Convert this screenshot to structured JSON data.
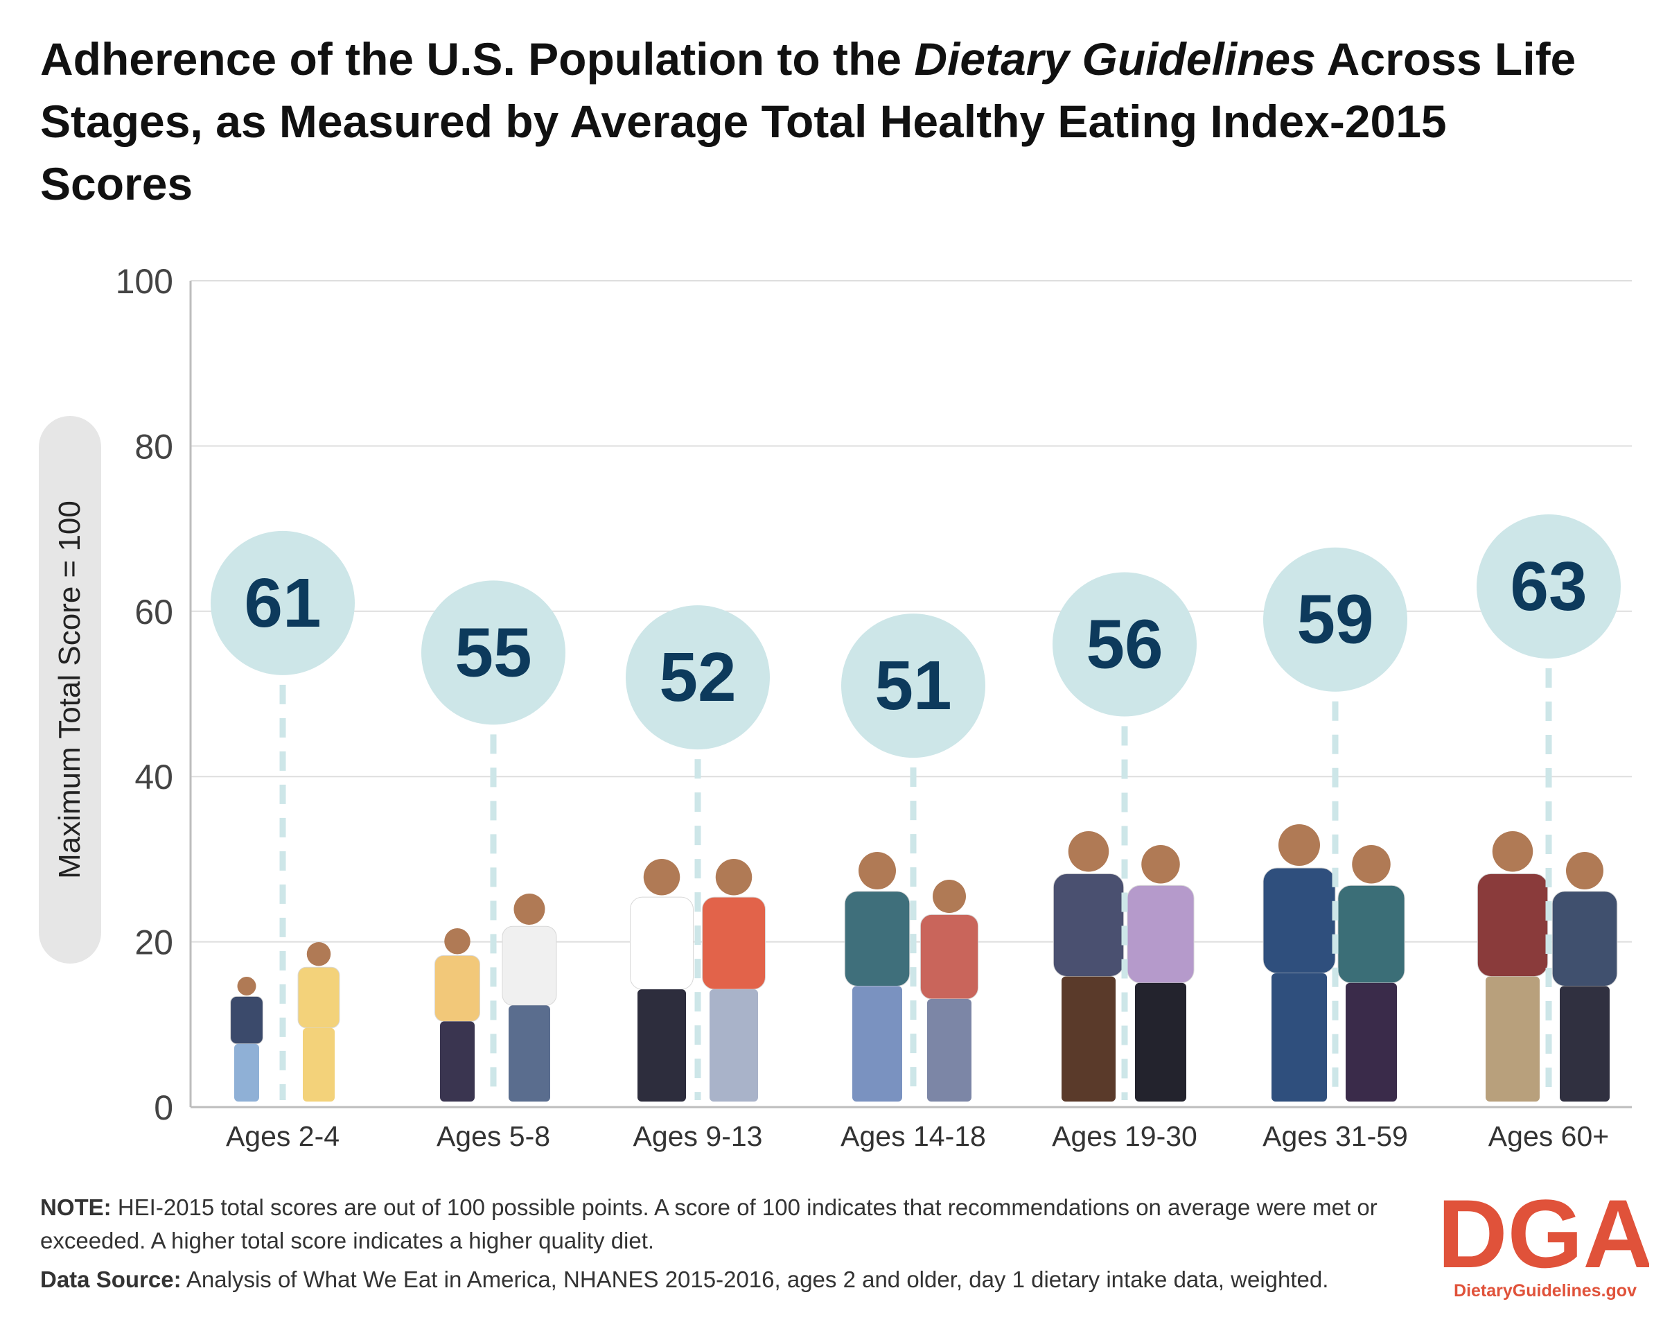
{
  "title": {
    "part1": "Adherence of the U.S. Population to the ",
    "italic": "Dietary Guidelines",
    "part2": " Across Life Stages, as Measured by Average Total Healthy Eating Index-2015 Scores"
  },
  "chart_data": {
    "type": "bar",
    "categories": [
      "Ages 2-4",
      "Ages 5-8",
      "Ages 9-13",
      "Ages 14-18",
      "Ages 19-30",
      "Ages 31-59",
      "Ages 60+"
    ],
    "values": [
      61,
      55,
      52,
      51,
      56,
      59,
      63
    ],
    "title": "Adherence of the U.S. Population to the Dietary Guidelines Across Life Stages, as Measured by Average Total Healthy Eating Index-2015 Scores",
    "ylabel": "Maximum Total Score = 100",
    "ylim": [
      0,
      100
    ],
    "yticks": [
      0,
      20,
      40,
      60,
      80,
      100
    ],
    "grid": true,
    "marker_color": "#cde6e8",
    "value_color": "#0d3a5c"
  },
  "note": {
    "label": "NOTE:",
    "text": " HEI-2015 total scores are out of 100 possible points. A score of 100 indicates that recommendations on average were met or exceeded. A higher total score indicates a higher quality diet."
  },
  "source": {
    "label": "Data Source:",
    "text": " Analysis of What We Eat in America, NHANES 2015-2016, ages 2 and older, day 1 dietary intake data, weighted."
  },
  "logo": {
    "letters": "DGA",
    "url": "DietaryGuidelines.gov",
    "color": "#e0523a"
  }
}
